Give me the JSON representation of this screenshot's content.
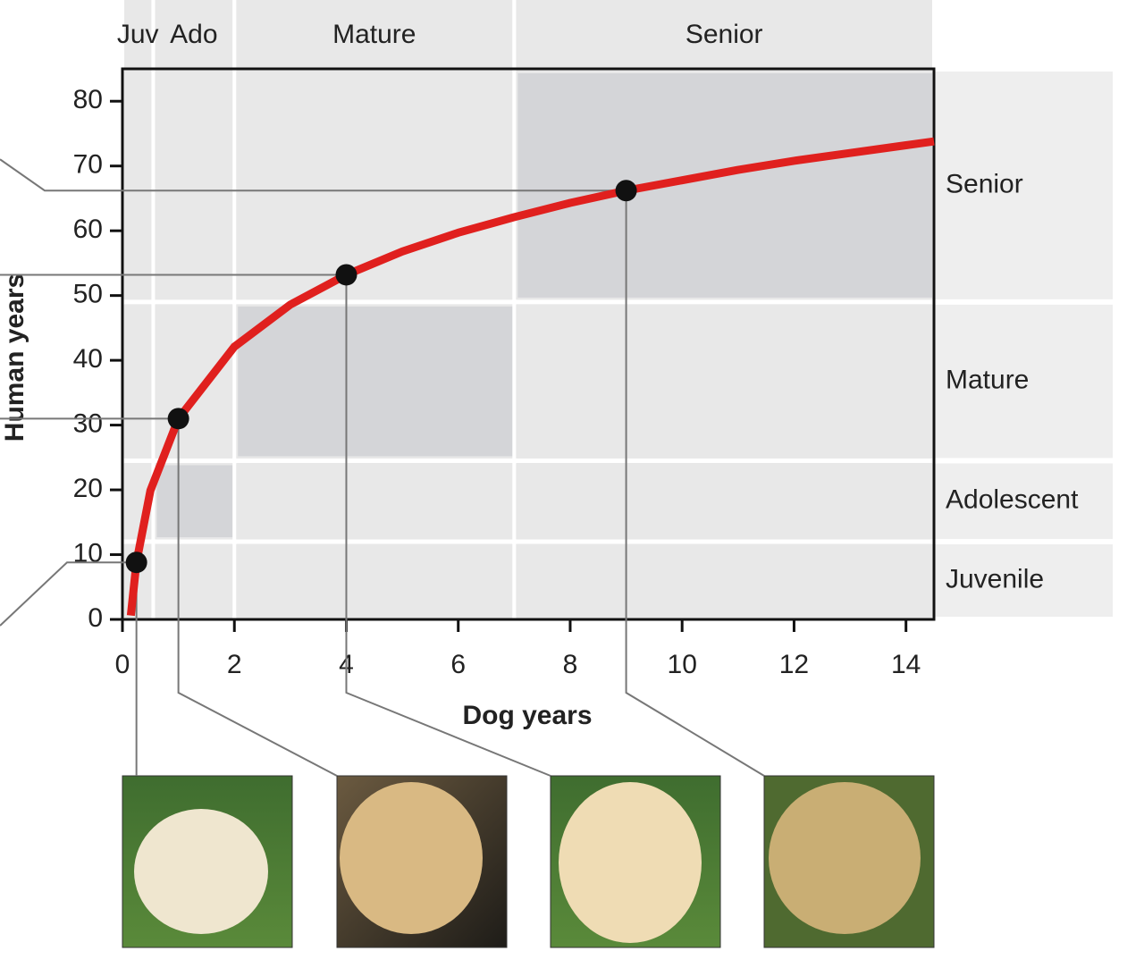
{
  "chart_data": {
    "type": "line",
    "x_label": "Dog years",
    "y_label": "Human years",
    "x": [
      0.15,
      0.25,
      0.5,
      1,
      2,
      3,
      4,
      5,
      6,
      7,
      8,
      9,
      10,
      11,
      12,
      13,
      14,
      14.5
    ],
    "values": [
      0.6,
      8.8,
      19.9,
      31,
      42.1,
      48.6,
      53.2,
      56.8,
      59.7,
      62.1,
      64.3,
      66.2,
      67.8,
      69.4,
      70.8,
      72.0,
      73.2,
      73.8
    ],
    "color": "#e0201e",
    "points": {
      "x": [
        0.25,
        1,
        4,
        9
      ],
      "values": [
        8.8,
        31,
        53.2,
        66.2
      ]
    },
    "dog_stages": [
      {
        "label": "Juv",
        "range": [
          0,
          0.55
        ]
      },
      {
        "label": "Ado",
        "range": [
          0.55,
          2
        ]
      },
      {
        "label": "Mature",
        "range": [
          2,
          7
        ]
      },
      {
        "label": "Senior",
        "range": [
          7,
          14.5
        ]
      }
    ],
    "human_stages": [
      {
        "label": "Juvenile",
        "range": [
          0,
          12
        ]
      },
      {
        "label": "Adolescent",
        "range": [
          12,
          24.5
        ]
      },
      {
        "label": "Mature",
        "range": [
          24.5,
          49
        ]
      },
      {
        "label": "Senior",
        "range": [
          49,
          85
        ]
      }
    ],
    "xlim": [
      0,
      14.5
    ],
    "ylim": [
      0,
      85
    ],
    "xticks": [
      0,
      2,
      4,
      6,
      8,
      10,
      12,
      14
    ],
    "yticks": [
      0,
      10,
      20,
      30,
      40,
      50,
      60,
      70,
      80
    ]
  }
}
